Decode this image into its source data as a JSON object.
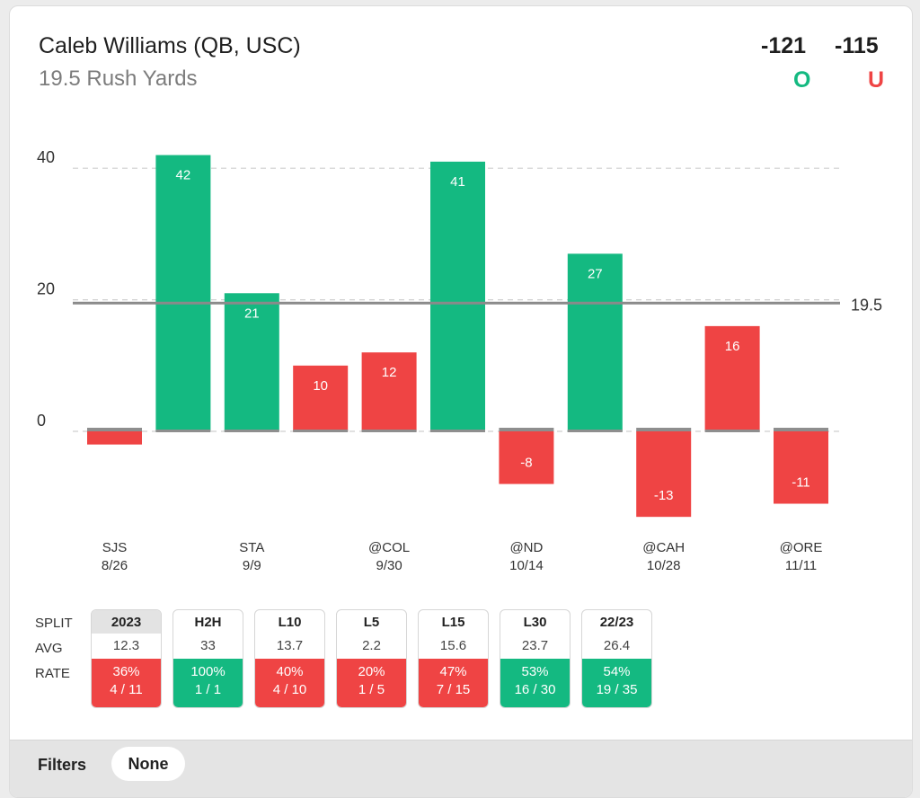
{
  "header": {
    "player": "Caleb Williams (QB, USC)",
    "prop": "19.5 Rush Yards",
    "over_odds": "-121",
    "under_odds": "-115",
    "over_label": "O",
    "under_label": "U"
  },
  "colors": {
    "over": "#14b981",
    "under": "#ef4444",
    "line": "#8a8a8a"
  },
  "chart_data": {
    "type": "bar",
    "categories": [
      "SJS 8/26",
      "",
      "STA 9/9",
      "",
      "@COL 9/30",
      "",
      "@ND 10/14",
      "",
      "@CAH 10/28",
      "",
      "@ORE 11/11"
    ],
    "tick_labels": [
      {
        "index": 0,
        "opponent": "SJS",
        "date": "8/26"
      },
      {
        "index": 2,
        "opponent": "STA",
        "date": "9/9"
      },
      {
        "index": 4,
        "opponent": "@COL",
        "date": "9/30"
      },
      {
        "index": 6,
        "opponent": "@ND",
        "date": "10/14"
      },
      {
        "index": 8,
        "opponent": "@CAH",
        "date": "10/28"
      },
      {
        "index": 10,
        "opponent": "@ORE",
        "date": "11/11"
      }
    ],
    "values": [
      -2,
      42,
      21,
      10,
      12,
      41,
      -8,
      27,
      -13,
      16,
      -11
    ],
    "data_labels": [
      "",
      "42",
      "21",
      "10",
      "12",
      "41",
      "-8",
      "27",
      "-13",
      "16",
      "-11"
    ],
    "yticks": [
      0,
      20,
      40
    ],
    "ylim": [
      -14,
      44
    ],
    "reference_line": 19.5,
    "reference_label": "19.5",
    "grid": true
  },
  "splits": {
    "row_labels": {
      "split": "SPLIT",
      "avg": "AVG",
      "rate": "RATE"
    },
    "columns": [
      {
        "label": "2023",
        "avg": "12.3",
        "pct": "36%",
        "frac": "4 / 11",
        "result": "under",
        "active": true
      },
      {
        "label": "H2H",
        "avg": "33",
        "pct": "100%",
        "frac": "1 / 1",
        "result": "over",
        "active": false
      },
      {
        "label": "L10",
        "avg": "13.7",
        "pct": "40%",
        "frac": "4 / 10",
        "result": "under",
        "active": false
      },
      {
        "label": "L5",
        "avg": "2.2",
        "pct": "20%",
        "frac": "1 / 5",
        "result": "under",
        "active": false
      },
      {
        "label": "L15",
        "avg": "15.6",
        "pct": "47%",
        "frac": "7 / 15",
        "result": "under",
        "active": false
      },
      {
        "label": "L30",
        "avg": "23.7",
        "pct": "53%",
        "frac": "16 / 30",
        "result": "over",
        "active": false
      },
      {
        "label": "22/23",
        "avg": "26.4",
        "pct": "54%",
        "frac": "19 / 35",
        "result": "over",
        "active": false
      }
    ]
  },
  "footer": {
    "filters_label": "Filters",
    "filter_value": "None"
  }
}
